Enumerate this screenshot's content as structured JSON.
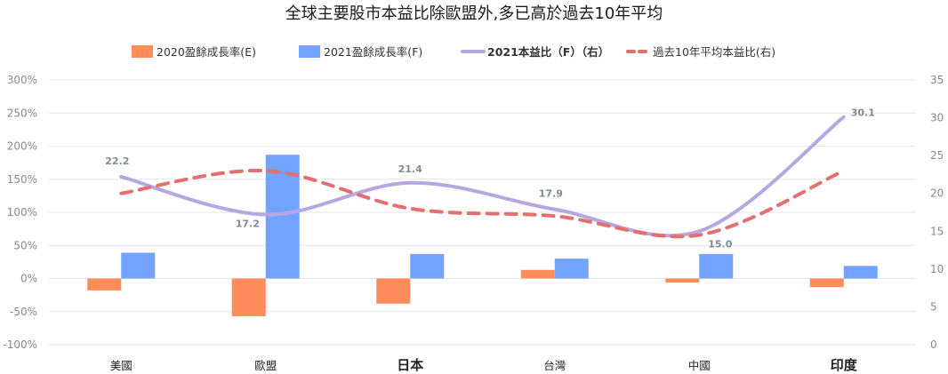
{
  "chart_data": {
    "type": "bar",
    "title": "全球主要股市本益比除歐盟外,多已高於過去10年平均",
    "categories": [
      "美國",
      "歐盟",
      "日本",
      "台灣",
      "中國",
      "印度"
    ],
    "category_bold": [
      false,
      false,
      true,
      false,
      false,
      true
    ],
    "y_left": {
      "min": -100,
      "max": 300,
      "step": 50,
      "ticks": [
        "-100%",
        "-50%",
        "0%",
        "50%",
        "100%",
        "150%",
        "200%",
        "250%",
        "300%"
      ]
    },
    "y_right": {
      "min": 0,
      "max": 35,
      "step": 5,
      "ticks": [
        "0",
        "5",
        "10",
        "15",
        "20",
        "25",
        "30",
        "35"
      ]
    },
    "grid": true,
    "legend_position": "top",
    "series": [
      {
        "name": "2020盈餘成長率(E)",
        "kind": "bar",
        "axis": "left",
        "color": "#ff8c5a",
        "values": [
          -18,
          -57,
          -38,
          13,
          -6,
          -13
        ]
      },
      {
        "name": "2021盈餘成長率(F)",
        "kind": "bar",
        "axis": "left",
        "color": "#73a3ff",
        "values": [
          39,
          187,
          37,
          30,
          37,
          19
        ]
      },
      {
        "name": "2021本益比（F）（右）",
        "kind": "line",
        "axis": "right",
        "color": "#b4a7e2",
        "values": [
          22.2,
          17.2,
          21.4,
          17.9,
          15.0,
          30.1
        ],
        "labels": [
          "22.2",
          "17.2",
          "21.4",
          "17.9",
          "15.0",
          "30.1"
        ]
      },
      {
        "name": "過去10年平均本益比(右)",
        "kind": "dashed-line",
        "axis": "right",
        "color": "#e36f6f",
        "values": [
          20.0,
          23.0,
          18.0,
          17.0,
          14.5,
          23.0
        ]
      }
    ]
  }
}
